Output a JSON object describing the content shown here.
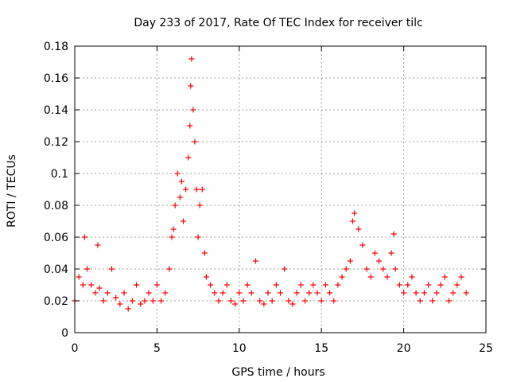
{
  "chart_data": {
    "type": "scatter",
    "title": "Day 233 of 2017, Rate Of TEC Index for receiver tilc",
    "xlabel": "GPS time / hours",
    "ylabel": "ROTI / TECUs",
    "xlim": [
      0,
      25
    ],
    "ylim": [
      0,
      0.18
    ],
    "xticks": [
      "0",
      "5",
      "10",
      "15",
      "20",
      "25"
    ],
    "yticks": [
      "0",
      "0.02",
      "0.04",
      "0.06",
      "0.08",
      "0.1",
      "0.12",
      "0.14",
      "0.16",
      "0.18"
    ],
    "grid": true,
    "marker": "+",
    "color": "#ff0000",
    "series": [
      {
        "x": [
          0.0,
          0.25,
          0.5,
          0.6,
          0.75,
          1.0,
          1.25,
          1.4,
          1.5,
          1.75,
          2.0,
          2.25,
          2.5,
          2.75,
          3.0,
          3.25,
          3.5,
          3.75,
          4.0,
          4.25,
          4.5,
          4.75,
          5.0,
          5.25,
          5.5,
          5.75,
          5.9,
          6.0,
          6.1,
          6.25,
          6.4,
          6.5,
          6.6,
          6.75,
          6.9,
          7.0,
          7.05,
          7.1,
          7.2,
          7.3,
          7.4,
          7.5,
          7.6,
          7.75,
          7.9,
          8.0,
          8.25,
          8.5,
          8.75,
          9.0,
          9.25,
          9.5,
          9.75,
          10.0,
          10.25,
          10.5,
          10.75,
          11.0,
          11.25,
          11.5,
          11.75,
          12.0,
          12.25,
          12.5,
          12.75,
          13.0,
          13.25,
          13.5,
          13.75,
          14.0,
          14.25,
          14.5,
          14.75,
          15.0,
          15.25,
          15.5,
          15.75,
          16.0,
          16.25,
          16.5,
          16.75,
          16.9,
          17.0,
          17.25,
          17.5,
          17.75,
          18.0,
          18.25,
          18.5,
          18.75,
          19.0,
          19.25,
          19.4,
          19.5,
          19.75,
          20.0,
          20.25,
          20.5,
          20.75,
          21.0,
          21.25,
          21.5,
          21.75,
          22.0,
          22.25,
          22.5,
          22.75,
          23.0,
          23.25,
          23.5,
          23.8
        ],
        "y": [
          0.02,
          0.035,
          0.03,
          0.06,
          0.04,
          0.03,
          0.025,
          0.055,
          0.028,
          0.02,
          0.025,
          0.04,
          0.022,
          0.018,
          0.025,
          0.015,
          0.02,
          0.03,
          0.018,
          0.02,
          0.025,
          0.02,
          0.03,
          0.02,
          0.025,
          0.04,
          0.06,
          0.065,
          0.08,
          0.1,
          0.085,
          0.095,
          0.07,
          0.09,
          0.11,
          0.13,
          0.155,
          0.172,
          0.14,
          0.12,
          0.09,
          0.06,
          0.08,
          0.09,
          0.05,
          0.035,
          0.03,
          0.025,
          0.02,
          0.025,
          0.03,
          0.02,
          0.018,
          0.025,
          0.02,
          0.03,
          0.025,
          0.045,
          0.02,
          0.018,
          0.025,
          0.02,
          0.03,
          0.025,
          0.04,
          0.02,
          0.018,
          0.025,
          0.03,
          0.02,
          0.025,
          0.03,
          0.025,
          0.02,
          0.03,
          0.025,
          0.02,
          0.03,
          0.035,
          0.04,
          0.045,
          0.07,
          0.075,
          0.065,
          0.055,
          0.04,
          0.035,
          0.05,
          0.045,
          0.04,
          0.035,
          0.05,
          0.062,
          0.04,
          0.03,
          0.025,
          0.03,
          0.035,
          0.025,
          0.02,
          0.025,
          0.03,
          0.02,
          0.025,
          0.03,
          0.035,
          0.02,
          0.025,
          0.03,
          0.035,
          0.025
        ]
      }
    ]
  }
}
